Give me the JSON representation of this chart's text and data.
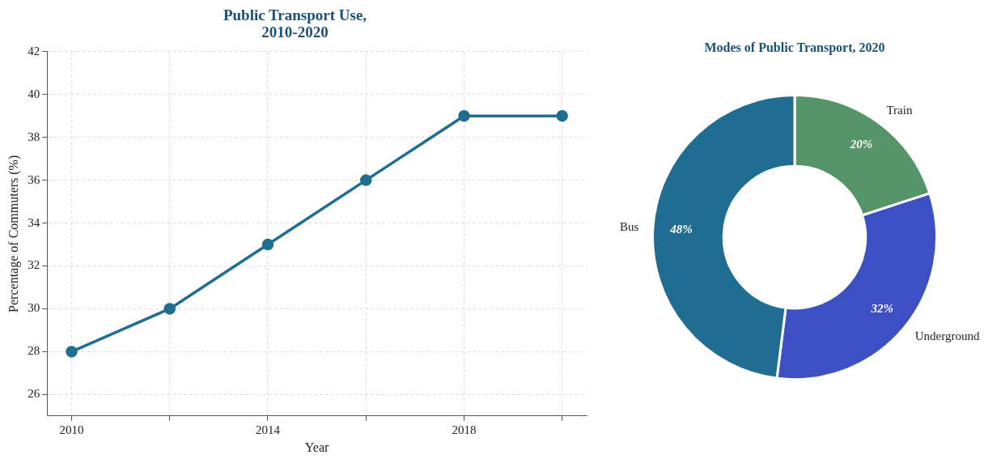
{
  "chart_data": [
    {
      "type": "line",
      "title": "Public Transport Use,\n2010-2020",
      "xlabel": "Year",
      "ylabel": "Percentage of Commuters (%)",
      "x": [
        2010,
        2012,
        2014,
        2016,
        2018,
        2020
      ],
      "series": [
        {
          "color": "#1f6e91",
          "values": [
            28,
            30,
            33,
            36,
            39,
            39
          ]
        }
      ],
      "xlim": [
        2009.5,
        2020.5
      ],
      "xticks": [
        2010,
        {
          "value": 2012,
          "label": null
        },
        2014,
        {
          "value": 2016,
          "label": null
        },
        2018,
        {
          "value": 2020,
          "label": null
        }
      ],
      "ylim": [
        25,
        42
      ],
      "yticks": [
        26,
        28,
        30,
        32,
        34,
        36,
        38,
        40,
        42
      ],
      "grid": true,
      "marker": "circle",
      "line_style": "solid",
      "legend": false
    },
    {
      "type": "donut",
      "title": "Modes of Public Transport, 2020",
      "categories": [
        "Train",
        "Underground",
        "Bus"
      ],
      "values": [
        20,
        32,
        48
      ],
      "colors": [
        "#559467",
        "#3c50c4",
        "#1f6e91"
      ],
      "value_labels": [
        "20%",
        "32%",
        "48%"
      ],
      "legend": false
    }
  ]
}
